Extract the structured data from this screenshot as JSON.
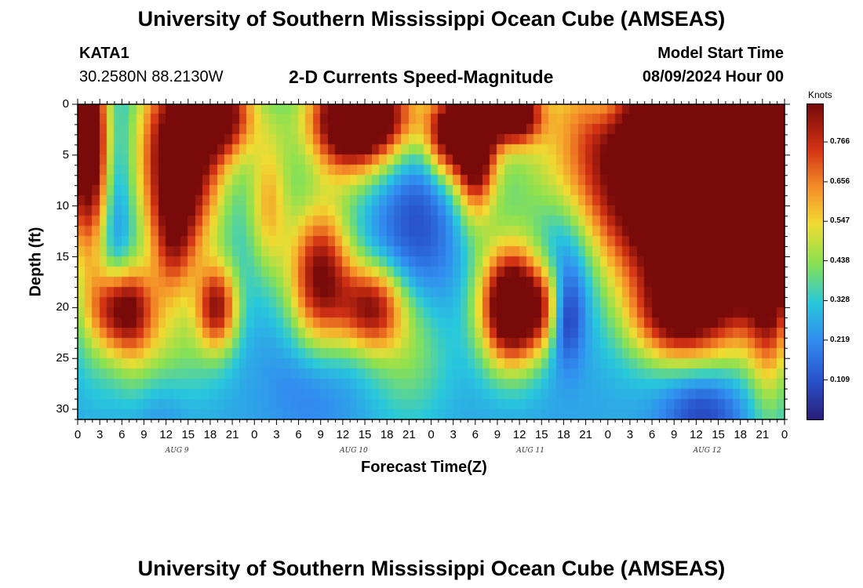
{
  "header": {
    "title": "University of Southern Mississippi Ocean Cube (AMSEAS)",
    "station": "KATA1",
    "coords": "30.2580N  88.2130W",
    "subtitle": "2-D Currents Speed-Magnitude",
    "model_start_label": "Model Start Time",
    "model_start_value": "08/09/2024 Hour 00",
    "footer_title": "University of Southern Mississippi Ocean Cube (AMSEAS)"
  },
  "chart_data": {
    "type": "heatmap",
    "title": "2-D Currents Speed-Magnitude",
    "xlabel": "Forecast Time(Z)",
    "ylabel": "Depth (ft)",
    "x_tick_labels": [
      "0",
      "3",
      "6",
      "9",
      "12",
      "15",
      "18",
      "21",
      "0",
      "3",
      "6",
      "9",
      "12",
      "15",
      "18",
      "21",
      "0",
      "3",
      "6",
      "9",
      "12",
      "15",
      "18",
      "21",
      "0",
      "3",
      "6",
      "9",
      "12",
      "15",
      "18",
      "21",
      "0"
    ],
    "x_hours_range": [
      0,
      96
    ],
    "day_labels": [
      {
        "label": "AUG 9",
        "hour": 12
      },
      {
        "label": "AUG 10",
        "hour": 36
      },
      {
        "label": "AUG 11",
        "hour": 60
      },
      {
        "label": "AUG 12",
        "hour": 84
      }
    ],
    "y_tick_labels": [
      "0",
      "5",
      "10",
      "15",
      "20",
      "25",
      "30"
    ],
    "y_range": [
      0,
      31
    ],
    "colorbar": {
      "label": "Knots",
      "ticks": [
        "0.109",
        "0.219",
        "0.328",
        "0.438",
        "0.547",
        "0.656",
        "0.766"
      ],
      "tick_values": [
        0.109,
        0.219,
        0.328,
        0.438,
        0.547,
        0.656,
        0.766
      ],
      "range": [
        0,
        0.87
      ]
    },
    "grid_cols": 96,
    "grid_rows": 31
  }
}
